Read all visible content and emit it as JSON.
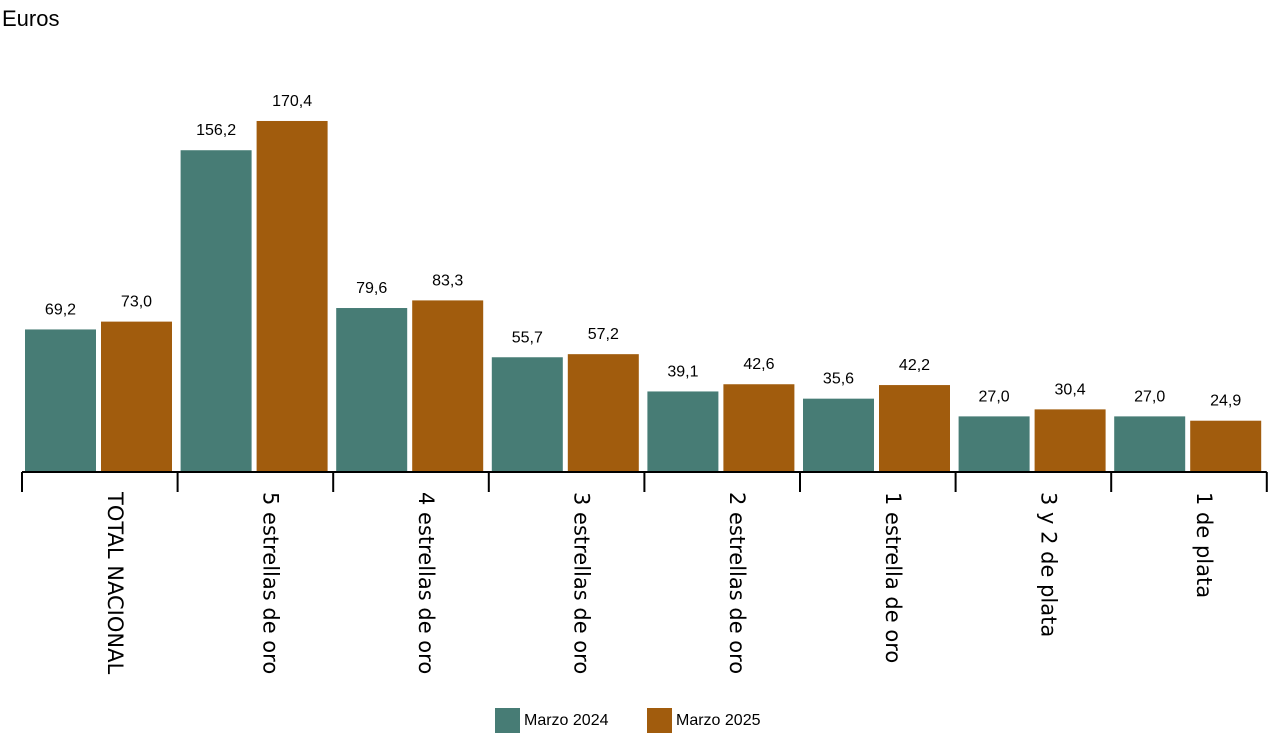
{
  "unit_label": "Euros",
  "colors": {
    "series_2024": "#477c75",
    "series_2025": "#a15c0d",
    "axis": "#000000"
  },
  "chart_data": {
    "type": "bar",
    "ylabel": "Euros",
    "ylim": [
      0,
      175
    ],
    "grid": false,
    "legend_position": "bottom",
    "categories": [
      "TOTAL NACIONAL",
      "5 estrellas de oro",
      "4 estrellas de oro",
      "3 estrellas de oro",
      "2 estrellas de oro",
      "1 estrella de oro",
      "3 y 2 de plata",
      "1 de plata"
    ],
    "series": [
      {
        "name": "Marzo 2024",
        "values": [
          69.2,
          156.2,
          79.6,
          55.7,
          39.1,
          35.6,
          27.0,
          27.0
        ],
        "labels": [
          "69,2",
          "156,2",
          "79,6",
          "55,7",
          "39,1",
          "35,6",
          "27,0",
          "27,0"
        ]
      },
      {
        "name": "Marzo 2025",
        "values": [
          73.0,
          170.4,
          83.3,
          57.2,
          42.6,
          42.2,
          30.4,
          24.9
        ],
        "labels": [
          "73,0",
          "170,4",
          "83,3",
          "57,2",
          "42,6",
          "42,2",
          "30,4",
          "24,9"
        ]
      }
    ]
  }
}
